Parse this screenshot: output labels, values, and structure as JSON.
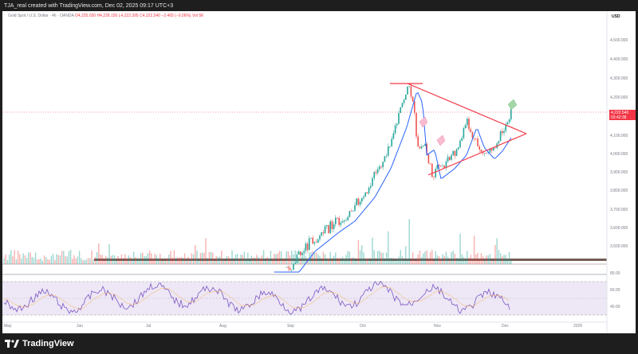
{
  "caption": "TJA_real created with TradingView.com, Dec 02, 2025 09:17 UTC+3",
  "symbol": {
    "name": "Gold Spot / U.S. Dollar · 4h · OANDA",
    "ohlc": "O4,225.030  H4,228.150  L4,222.395  C4,222.540  −2.465 (−0.06%)",
    "volume_label": "Vol 5K"
  },
  "currency": "USD",
  "last_price": "4,222.540",
  "countdown": "03:42:38",
  "price_axis": [
    "4,500.000",
    "4,400.000",
    "4,300.000",
    "4,200.000",
    "4,100.000",
    "4,000.000",
    "3,900.000",
    "3,800.000",
    "3,700.000",
    "3,600.000",
    "3,500.000"
  ],
  "rsi_axis": [
    "80.00",
    "60.00",
    "40.00"
  ],
  "time_axis": [
    "May",
    "Jun",
    "Jul",
    "Aug",
    "Sep",
    "Oct",
    "Nov",
    "Dec",
    "2026"
  ],
  "brand": "TradingView",
  "colors": {
    "up": "#26a69a",
    "down": "#ef5350",
    "ma": "#2962ff",
    "triangle": "#f23645",
    "rsi": "#7e57c2",
    "rsi_band": "#ede7f6"
  }
}
